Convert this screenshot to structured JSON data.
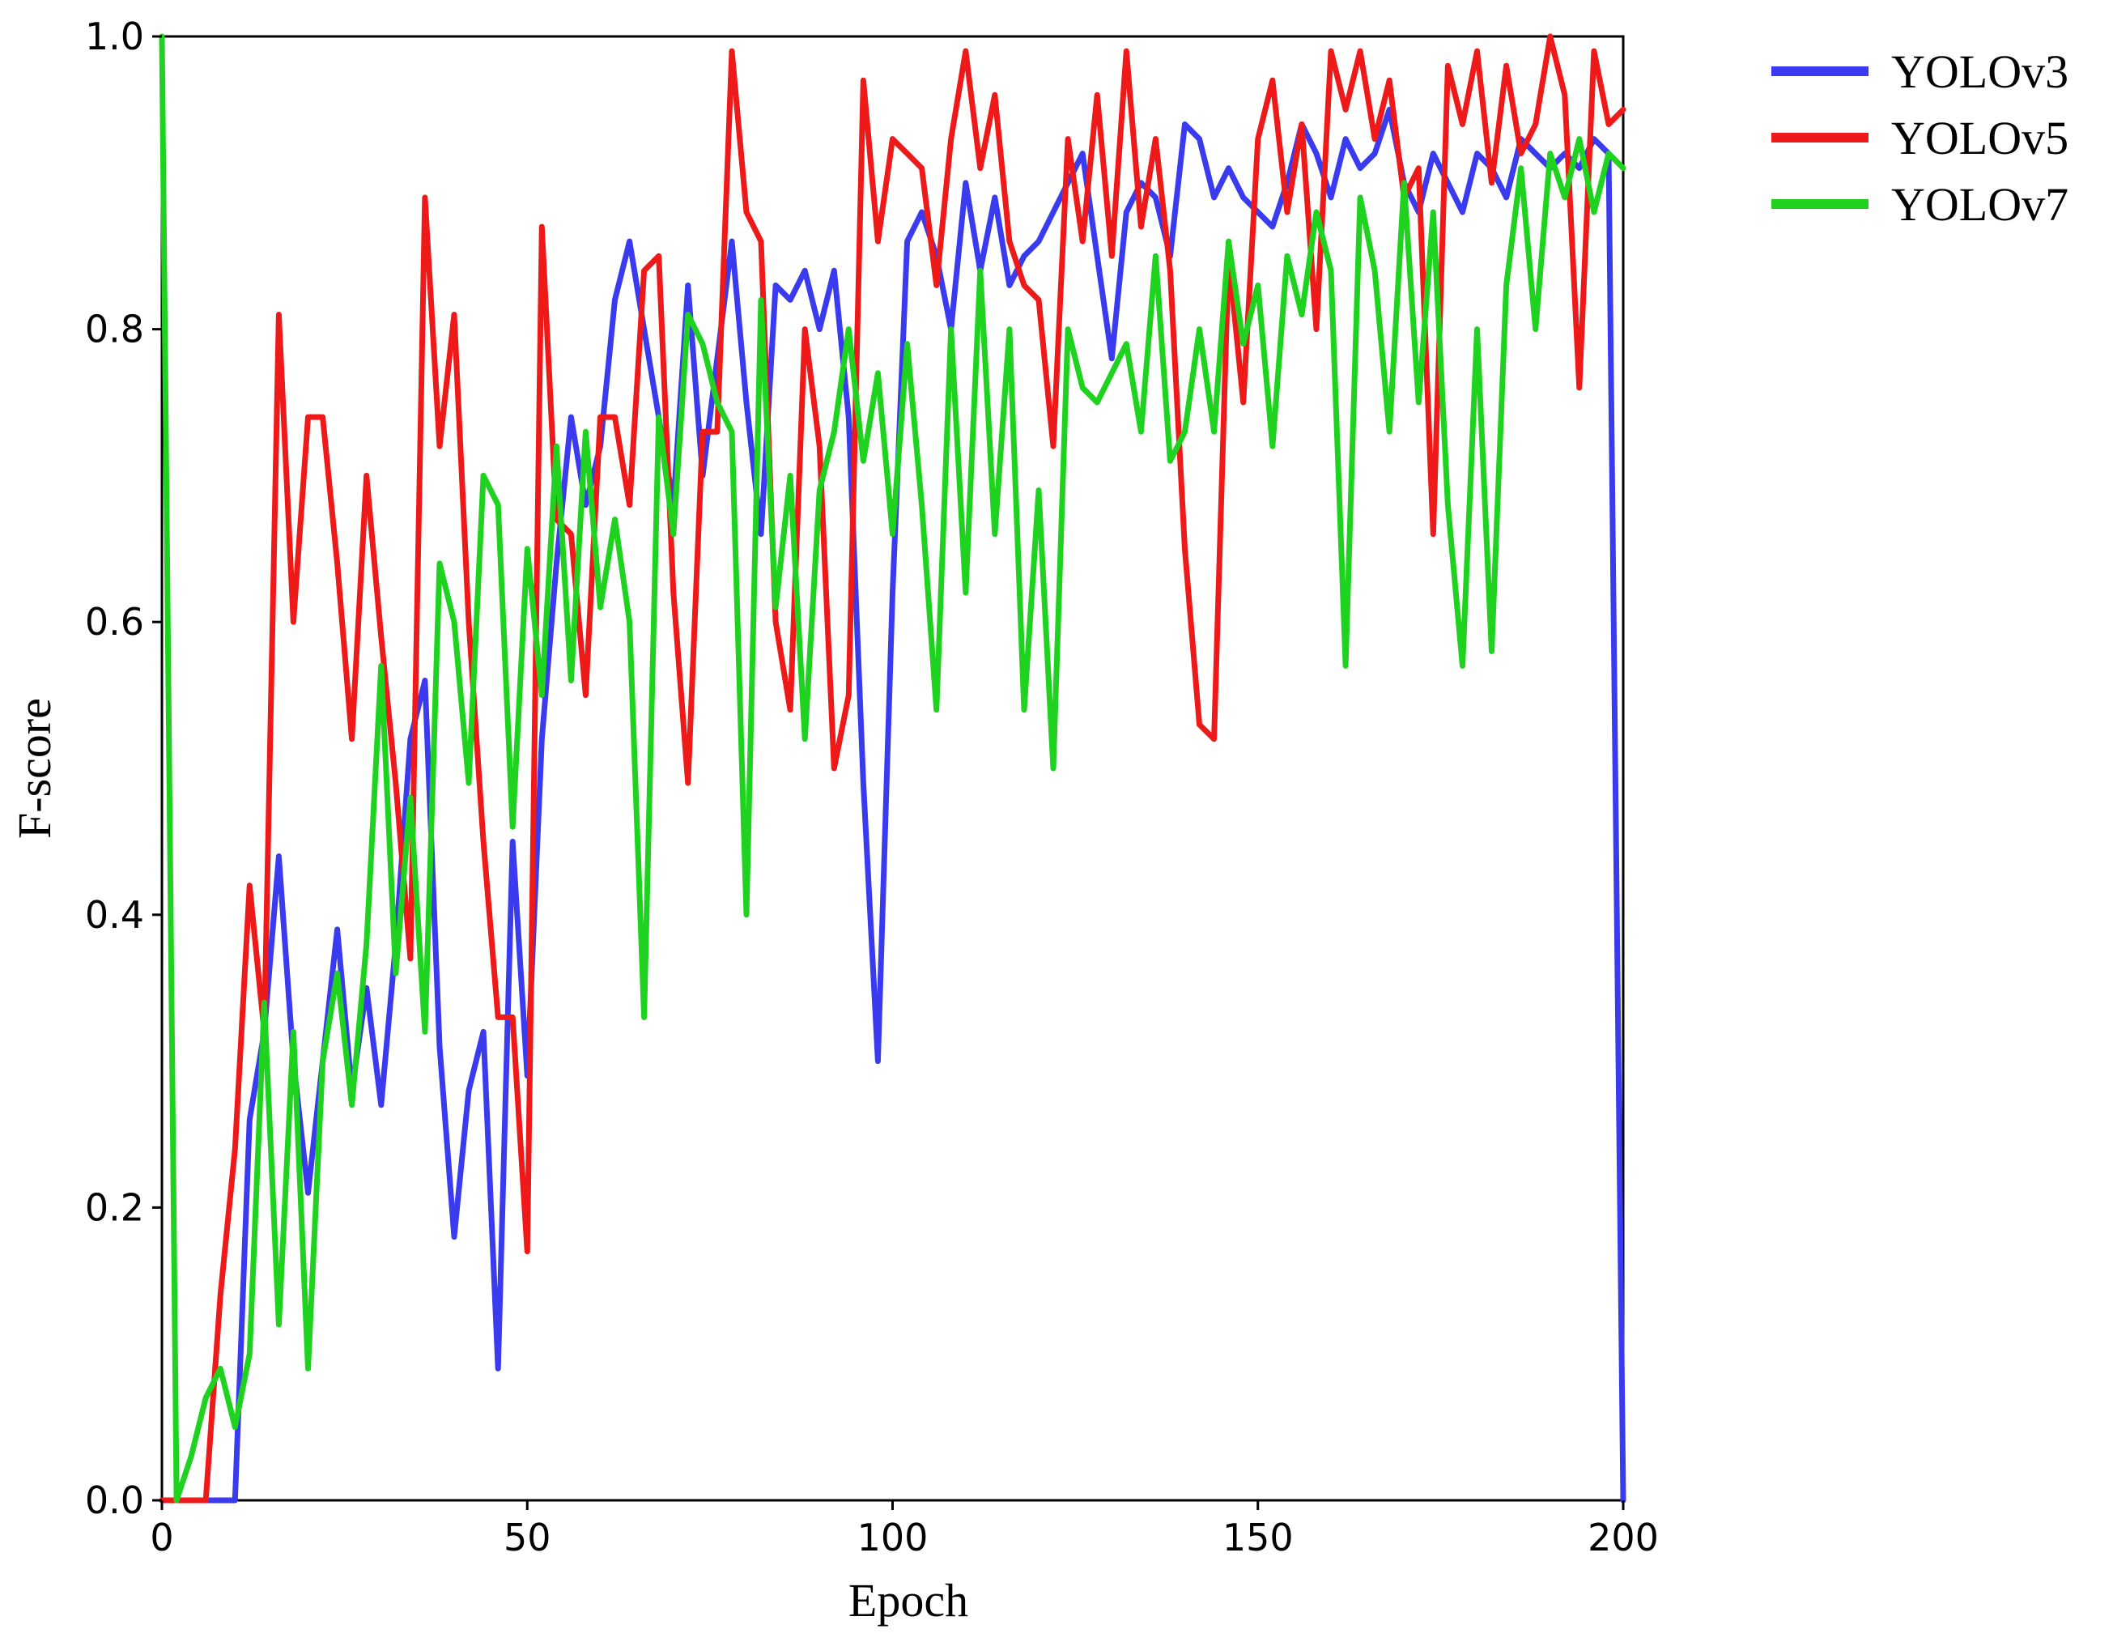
{
  "chart_data": {
    "type": "line",
    "xlabel": "Epoch",
    "ylabel": "F-score",
    "xlim": [
      0,
      200
    ],
    "ylim": [
      0.0,
      1.0
    ],
    "xticks": [
      "0",
      "50",
      "100",
      "150",
      "200"
    ],
    "yticks": [
      "0.0",
      "0.2",
      "0.4",
      "0.6",
      "0.8",
      "1.0"
    ],
    "grid": false,
    "legend_position": "top-right (outside plot)",
    "x": [
      0,
      2,
      4,
      6,
      8,
      10,
      12,
      14,
      16,
      18,
      20,
      22,
      24,
      26,
      28,
      30,
      32,
      34,
      36,
      38,
      40,
      42,
      44,
      46,
      48,
      50,
      52,
      54,
      56,
      58,
      60,
      62,
      64,
      66,
      68,
      70,
      72,
      74,
      76,
      78,
      80,
      82,
      84,
      86,
      88,
      90,
      92,
      94,
      96,
      98,
      100,
      102,
      104,
      106,
      108,
      110,
      112,
      114,
      116,
      118,
      120,
      122,
      124,
      126,
      128,
      130,
      132,
      134,
      136,
      138,
      140,
      142,
      144,
      146,
      148,
      150,
      152,
      154,
      156,
      158,
      160,
      162,
      164,
      166,
      168,
      170,
      172,
      174,
      176,
      178,
      180,
      182,
      184,
      186,
      188,
      190,
      192,
      194,
      196,
      198,
      200
    ],
    "series": [
      {
        "name": "YOLOv3",
        "color": "#3a3aee",
        "values": [
          0.0,
          0.0,
          0.0,
          0.0,
          0.0,
          0.0,
          0.26,
          0.32,
          0.44,
          0.3,
          0.21,
          0.3,
          0.39,
          0.28,
          0.35,
          0.27,
          0.38,
          0.52,
          0.56,
          0.31,
          0.18,
          0.28,
          0.32,
          0.09,
          0.45,
          0.29,
          0.52,
          0.64,
          0.74,
          0.68,
          0.72,
          0.82,
          0.86,
          0.8,
          0.74,
          0.68,
          0.83,
          0.7,
          0.78,
          0.86,
          0.75,
          0.66,
          0.83,
          0.82,
          0.84,
          0.8,
          0.84,
          0.74,
          0.49,
          0.3,
          0.62,
          0.86,
          0.88,
          0.85,
          0.8,
          0.9,
          0.84,
          0.89,
          0.83,
          0.85,
          0.86,
          0.88,
          0.9,
          0.92,
          0.85,
          0.78,
          0.88,
          0.9,
          0.89,
          0.85,
          0.94,
          0.93,
          0.89,
          0.91,
          0.89,
          0.88,
          0.87,
          0.9,
          0.94,
          0.92,
          0.89,
          0.93,
          0.91,
          0.92,
          0.95,
          0.9,
          0.88,
          0.92,
          0.9,
          0.88,
          0.92,
          0.91,
          0.89,
          0.93,
          0.92,
          0.91,
          0.92,
          0.91,
          0.93,
          0.92,
          0.0
        ]
      },
      {
        "name": "YOLOv5",
        "color": "#ee1a1a",
        "values": [
          0.0,
          0.0,
          0.0,
          0.0,
          0.14,
          0.24,
          0.42,
          0.32,
          0.81,
          0.6,
          0.74,
          0.74,
          0.64,
          0.52,
          0.7,
          0.59,
          0.49,
          0.37,
          0.89,
          0.72,
          0.81,
          0.6,
          0.45,
          0.33,
          0.33,
          0.17,
          0.87,
          0.67,
          0.66,
          0.55,
          0.74,
          0.74,
          0.68,
          0.84,
          0.85,
          0.62,
          0.49,
          0.73,
          0.73,
          0.99,
          0.88,
          0.86,
          0.6,
          0.54,
          0.8,
          0.72,
          0.5,
          0.55,
          0.97,
          0.86,
          0.93,
          0.92,
          0.91,
          0.83,
          0.93,
          0.99,
          0.91,
          0.96,
          0.86,
          0.83,
          0.82,
          0.72,
          0.93,
          0.86,
          0.96,
          0.85,
          0.99,
          0.87,
          0.93,
          0.84,
          0.65,
          0.53,
          0.52,
          0.85,
          0.75,
          0.93,
          0.97,
          0.88,
          0.94,
          0.8,
          0.99,
          0.95,
          0.99,
          0.93,
          0.97,
          0.89,
          0.91,
          0.66,
          0.98,
          0.94,
          0.99,
          0.9,
          0.98,
          0.92,
          0.94,
          1.0,
          0.96,
          0.76,
          0.99,
          0.94,
          0.95
        ]
      },
      {
        "name": "YOLOv7",
        "color": "#1fd21f",
        "values": [
          1.0,
          0.0,
          0.03,
          0.07,
          0.09,
          0.05,
          0.1,
          0.34,
          0.12,
          0.32,
          0.09,
          0.3,
          0.36,
          0.27,
          0.38,
          0.57,
          0.36,
          0.48,
          0.32,
          0.64,
          0.6,
          0.49,
          0.7,
          0.68,
          0.46,
          0.65,
          0.55,
          0.72,
          0.56,
          0.73,
          0.61,
          0.67,
          0.6,
          0.33,
          0.74,
          0.66,
          0.81,
          0.79,
          0.75,
          0.73,
          0.4,
          0.82,
          0.61,
          0.7,
          0.52,
          0.69,
          0.73,
          0.8,
          0.71,
          0.77,
          0.66,
          0.79,
          0.68,
          0.54,
          0.8,
          0.62,
          0.84,
          0.66,
          0.8,
          0.54,
          0.69,
          0.5,
          0.8,
          0.76,
          0.75,
          0.77,
          0.79,
          0.73,
          0.85,
          0.71,
          0.73,
          0.8,
          0.73,
          0.86,
          0.79,
          0.83,
          0.72,
          0.85,
          0.81,
          0.88,
          0.84,
          0.57,
          0.89,
          0.84,
          0.73,
          0.9,
          0.75,
          0.88,
          0.68,
          0.57,
          0.8,
          0.58,
          0.83,
          0.91,
          0.8,
          0.92,
          0.89,
          0.93,
          0.88,
          0.92,
          0.91
        ]
      }
    ]
  }
}
